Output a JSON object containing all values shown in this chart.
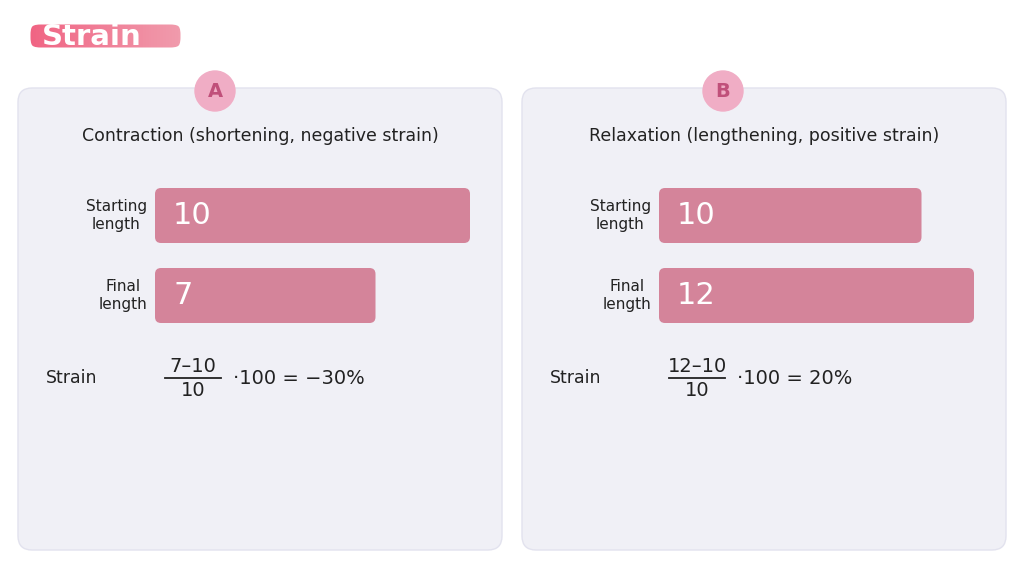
{
  "bg_color": "#ffffff",
  "panel_bg": "#f0f0f6",
  "panel_edge": "#e2e2ee",
  "bar_color": "#d4849a",
  "title_label": "Strain",
  "title_color_left": "#f06080",
  "title_color_right": "#f0a0b0",
  "panel_A_title": "Contraction (shortening, negative strain)",
  "panel_B_title": "Relaxation (lengthening, positive strain)",
  "circle_color": "#f0adc5",
  "circle_text_color": "#c0507a",
  "bar_label_color": "#ffffff",
  "text_dark": "#222222",
  "text_mid": "#444444",
  "panel_A": {
    "starting_value": 10,
    "final_value": 7,
    "max_bar": 10,
    "formula_num": "7–10",
    "formula_den": "10",
    "formula_rest": "·100 = −30%"
  },
  "panel_B": {
    "starting_value": 10,
    "final_value": 12,
    "max_bar": 12,
    "formula_num": "12–10",
    "formula_den": "10",
    "formula_rest": "·100 = 20%"
  }
}
